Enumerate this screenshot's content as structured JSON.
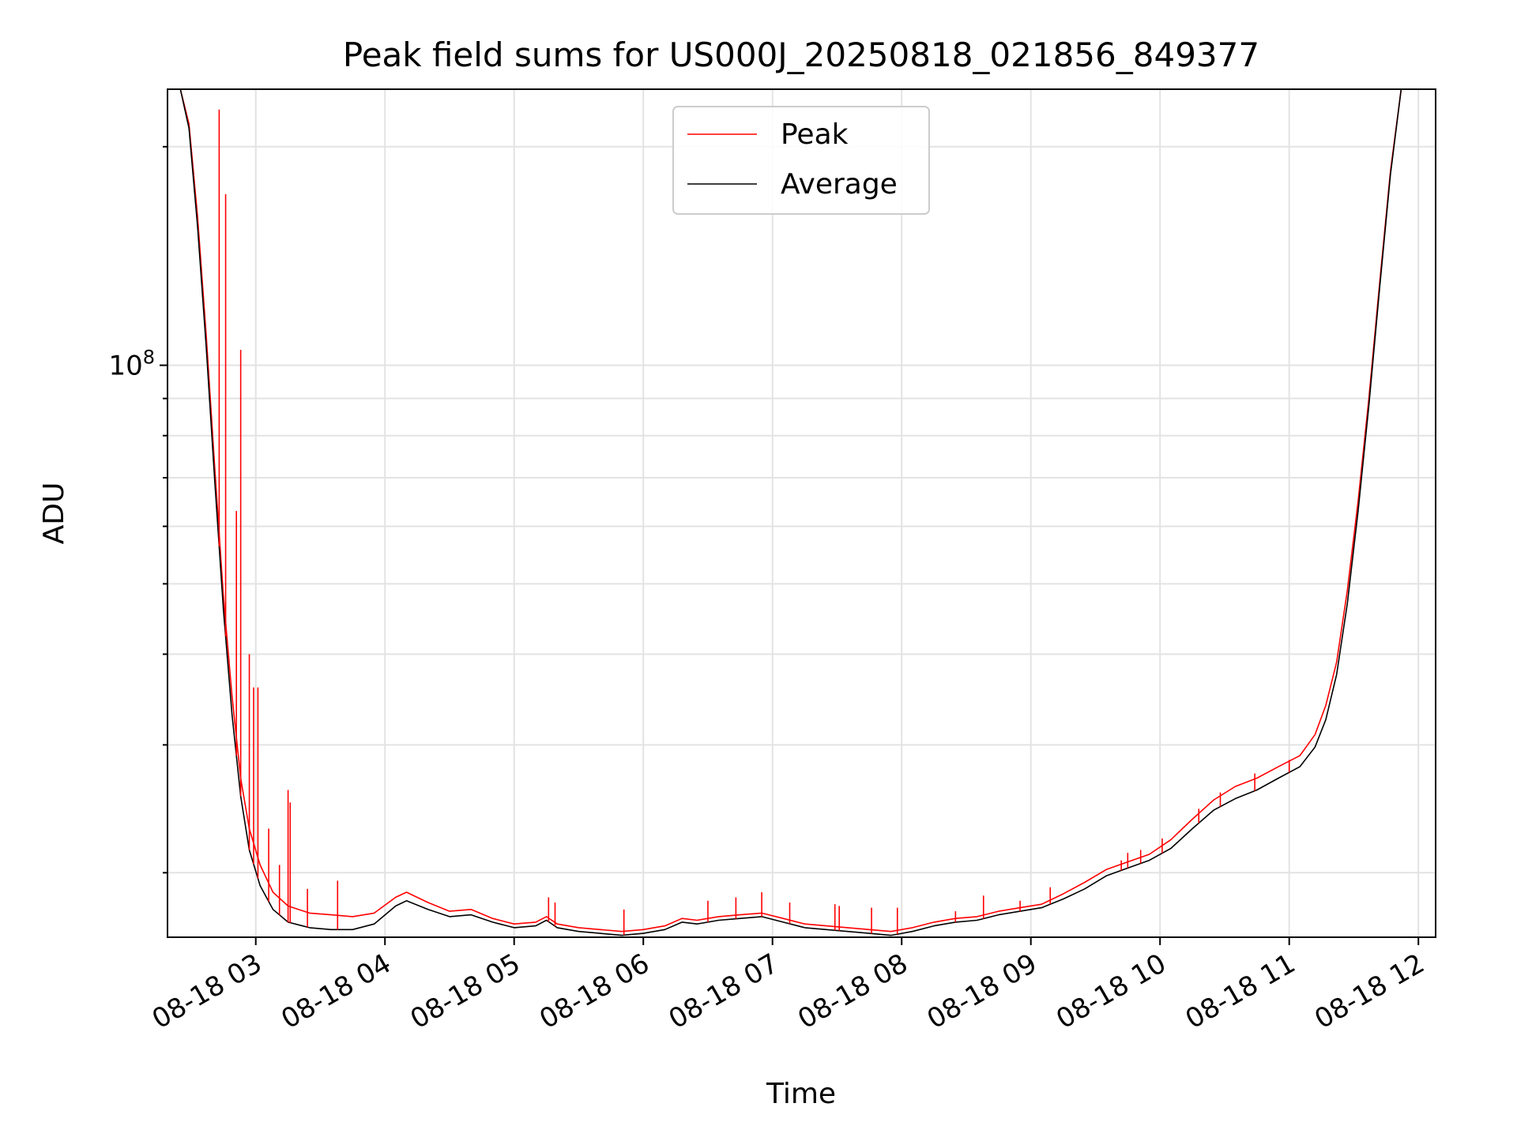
{
  "chart_data": {
    "type": "line",
    "title": "Peak field sums for US000J_20250818_021856_849377",
    "xlabel": "Time",
    "ylabel": "ADU",
    "y_scale": "log",
    "grid": true,
    "legend_placement": "top-center",
    "xlim": [
      "2025-08-18 02:19",
      "2025-08-18 12:08"
    ],
    "ylim": [
      16300000,
      240000000
    ],
    "x_ticks": [
      {
        "label": "08-18 03",
        "value": "2025-08-18 03:00"
      },
      {
        "label": "08-18 04",
        "value": "2025-08-18 04:00"
      },
      {
        "label": "08-18 05",
        "value": "2025-08-18 05:00"
      },
      {
        "label": "08-18 06",
        "value": "2025-08-18 06:00"
      },
      {
        "label": "08-18 07",
        "value": "2025-08-18 07:00"
      },
      {
        "label": "08-18 08",
        "value": "2025-08-18 08:00"
      },
      {
        "label": "08-18 09",
        "value": "2025-08-18 09:00"
      },
      {
        "label": "08-18 10",
        "value": "2025-08-18 10:00"
      },
      {
        "label": "08-18 11",
        "value": "2025-08-18 11:00"
      },
      {
        "label": "08-18 12",
        "value": "2025-08-18 12:00"
      }
    ],
    "y_major_ticks": [
      {
        "base": "10",
        "exp": "8",
        "value": 100000000
      }
    ],
    "y_minor_ticks": [
      20000000,
      30000000,
      40000000,
      50000000,
      60000000,
      70000000,
      80000000,
      90000000,
      200000000
    ],
    "series": [
      {
        "name": "Peak",
        "color": "#ff0000",
        "line_width": "thin",
        "points": [
          [
            "2025-08-18 02:19",
            240000000
          ],
          [
            "2025-08-18 02:25",
            240000000
          ],
          [
            "2025-08-18 02:29",
            215000000
          ],
          [
            "2025-08-18 02:33",
            160000000
          ],
          [
            "2025-08-18 02:37",
            110000000
          ],
          [
            "2025-08-18 02:41",
            72000000
          ],
          [
            "2025-08-18 02:45",
            48000000
          ],
          [
            "2025-08-18 02:49",
            35000000
          ],
          [
            "2025-08-18 02:53",
            27000000
          ],
          [
            "2025-08-18 02:57",
            23000000
          ],
          [
            "2025-08-18 03:02",
            20500000
          ],
          [
            "2025-08-18 03:08",
            18800000
          ],
          [
            "2025-08-18 03:15",
            18000000
          ],
          [
            "2025-08-18 03:25",
            17600000
          ],
          [
            "2025-08-18 03:35",
            17500000
          ],
          [
            "2025-08-18 03:45",
            17400000
          ],
          [
            "2025-08-18 03:55",
            17600000
          ],
          [
            "2025-08-18 04:05",
            18500000
          ],
          [
            "2025-08-18 04:10",
            18800000
          ],
          [
            "2025-08-18 04:20",
            18200000
          ],
          [
            "2025-08-18 04:30",
            17700000
          ],
          [
            "2025-08-18 04:40",
            17800000
          ],
          [
            "2025-08-18 04:50",
            17300000
          ],
          [
            "2025-08-18 05:00",
            17000000
          ],
          [
            "2025-08-18 05:10",
            17100000
          ],
          [
            "2025-08-18 05:15",
            17400000
          ],
          [
            "2025-08-18 05:20",
            17000000
          ],
          [
            "2025-08-18 05:30",
            16800000
          ],
          [
            "2025-08-18 05:40",
            16700000
          ],
          [
            "2025-08-18 05:50",
            16600000
          ],
          [
            "2025-08-18 06:00",
            16700000
          ],
          [
            "2025-08-18 06:10",
            16900000
          ],
          [
            "2025-08-18 06:18",
            17300000
          ],
          [
            "2025-08-18 06:25",
            17200000
          ],
          [
            "2025-08-18 06:35",
            17400000
          ],
          [
            "2025-08-18 06:45",
            17500000
          ],
          [
            "2025-08-18 06:55",
            17600000
          ],
          [
            "2025-08-18 07:05",
            17300000
          ],
          [
            "2025-08-18 07:15",
            17000000
          ],
          [
            "2025-08-18 07:25",
            16900000
          ],
          [
            "2025-08-18 07:35",
            16800000
          ],
          [
            "2025-08-18 07:45",
            16700000
          ],
          [
            "2025-08-18 07:55",
            16600000
          ],
          [
            "2025-08-18 08:05",
            16800000
          ],
          [
            "2025-08-18 08:15",
            17100000
          ],
          [
            "2025-08-18 08:25",
            17300000
          ],
          [
            "2025-08-18 08:35",
            17400000
          ],
          [
            "2025-08-18 08:45",
            17700000
          ],
          [
            "2025-08-18 08:55",
            17900000
          ],
          [
            "2025-08-18 09:05",
            18100000
          ],
          [
            "2025-08-18 09:15",
            18700000
          ],
          [
            "2025-08-18 09:25",
            19400000
          ],
          [
            "2025-08-18 09:35",
            20200000
          ],
          [
            "2025-08-18 09:45",
            20700000
          ],
          [
            "2025-08-18 09:55",
            21200000
          ],
          [
            "2025-08-18 10:05",
            22200000
          ],
          [
            "2025-08-18 10:15",
            23700000
          ],
          [
            "2025-08-18 10:25",
            25200000
          ],
          [
            "2025-08-18 10:35",
            26300000
          ],
          [
            "2025-08-18 10:45",
            27000000
          ],
          [
            "2025-08-18 10:55",
            28000000
          ],
          [
            "2025-08-18 11:05",
            29000000
          ],
          [
            "2025-08-18 11:12",
            31000000
          ],
          [
            "2025-08-18 11:17",
            34000000
          ],
          [
            "2025-08-18 11:22",
            39000000
          ],
          [
            "2025-08-18 11:27",
            49000000
          ],
          [
            "2025-08-18 11:32",
            65000000
          ],
          [
            "2025-08-18 11:37",
            90000000
          ],
          [
            "2025-08-18 11:42",
            130000000
          ],
          [
            "2025-08-18 11:47",
            185000000
          ],
          [
            "2025-08-18 11:52",
            240000000
          ],
          [
            "2025-08-18 12:08",
            240000000
          ]
        ],
        "spikes": [
          [
            "2025-08-18 02:43",
            225000000
          ],
          [
            "2025-08-18 02:46",
            172000000
          ],
          [
            "2025-08-18 02:51",
            63000000
          ],
          [
            "2025-08-18 02:53",
            105000000
          ],
          [
            "2025-08-18 02:57",
            40000000
          ],
          [
            "2025-08-18 02:59",
            36000000
          ],
          [
            "2025-08-18 03:01",
            36000000
          ],
          [
            "2025-08-18 03:06",
            23000000
          ],
          [
            "2025-08-18 03:11",
            20500000
          ],
          [
            "2025-08-18 03:15",
            26000000
          ],
          [
            "2025-08-18 03:16",
            25000000
          ],
          [
            "2025-08-18 03:24",
            19000000
          ],
          [
            "2025-08-18 03:38",
            19500000
          ],
          [
            "2025-08-18 05:16",
            18500000
          ],
          [
            "2025-08-18 05:19",
            18200000
          ],
          [
            "2025-08-18 05:51",
            17800000
          ],
          [
            "2025-08-18 06:30",
            18300000
          ],
          [
            "2025-08-18 06:43",
            18500000
          ],
          [
            "2025-08-18 06:55",
            18800000
          ],
          [
            "2025-08-18 07:08",
            18200000
          ],
          [
            "2025-08-18 07:29",
            18100000
          ],
          [
            "2025-08-18 07:31",
            18000000
          ],
          [
            "2025-08-18 07:46",
            17900000
          ],
          [
            "2025-08-18 07:58",
            17900000
          ],
          [
            "2025-08-18 08:25",
            17700000
          ],
          [
            "2025-08-18 08:38",
            18600000
          ],
          [
            "2025-08-18 08:55",
            18300000
          ],
          [
            "2025-08-18 09:09",
            19100000
          ],
          [
            "2025-08-18 09:42",
            20800000
          ],
          [
            "2025-08-18 09:45",
            21300000
          ],
          [
            "2025-08-18 09:51",
            21500000
          ],
          [
            "2025-08-18 10:01",
            22300000
          ],
          [
            "2025-08-18 10:18",
            24500000
          ],
          [
            "2025-08-18 10:28",
            25800000
          ],
          [
            "2025-08-18 10:44",
            27400000
          ],
          [
            "2025-08-18 11:00",
            28600000
          ]
        ]
      },
      {
        "name": "Average",
        "color": "#000000",
        "line_width": "thin",
        "points": [
          [
            "2025-08-18 02:19",
            240000000
          ],
          [
            "2025-08-18 02:25",
            240000000
          ],
          [
            "2025-08-18 02:29",
            212000000
          ],
          [
            "2025-08-18 02:33",
            155000000
          ],
          [
            "2025-08-18 02:37",
            106000000
          ],
          [
            "2025-08-18 02:41",
            69000000
          ],
          [
            "2025-08-18 02:45",
            46000000
          ],
          [
            "2025-08-18 02:49",
            33000000
          ],
          [
            "2025-08-18 02:53",
            25500000
          ],
          [
            "2025-08-18 02:57",
            21500000
          ],
          [
            "2025-08-18 03:02",
            19200000
          ],
          [
            "2025-08-18 03:08",
            17800000
          ],
          [
            "2025-08-18 03:15",
            17100000
          ],
          [
            "2025-08-18 03:25",
            16800000
          ],
          [
            "2025-08-18 03:35",
            16700000
          ],
          [
            "2025-08-18 03:45",
            16700000
          ],
          [
            "2025-08-18 03:55",
            17000000
          ],
          [
            "2025-08-18 04:05",
            18000000
          ],
          [
            "2025-08-18 04:10",
            18300000
          ],
          [
            "2025-08-18 04:20",
            17800000
          ],
          [
            "2025-08-18 04:30",
            17400000
          ],
          [
            "2025-08-18 04:40",
            17500000
          ],
          [
            "2025-08-18 04:50",
            17100000
          ],
          [
            "2025-08-18 05:00",
            16800000
          ],
          [
            "2025-08-18 05:10",
            16900000
          ],
          [
            "2025-08-18 05:15",
            17200000
          ],
          [
            "2025-08-18 05:20",
            16800000
          ],
          [
            "2025-08-18 05:30",
            16600000
          ],
          [
            "2025-08-18 05:40",
            16500000
          ],
          [
            "2025-08-18 05:50",
            16400000
          ],
          [
            "2025-08-18 06:00",
            16500000
          ],
          [
            "2025-08-18 06:10",
            16700000
          ],
          [
            "2025-08-18 06:18",
            17100000
          ],
          [
            "2025-08-18 06:25",
            17000000
          ],
          [
            "2025-08-18 06:35",
            17200000
          ],
          [
            "2025-08-18 06:45",
            17300000
          ],
          [
            "2025-08-18 06:55",
            17400000
          ],
          [
            "2025-08-18 07:05",
            17100000
          ],
          [
            "2025-08-18 07:15",
            16800000
          ],
          [
            "2025-08-18 07:25",
            16700000
          ],
          [
            "2025-08-18 07:35",
            16600000
          ],
          [
            "2025-08-18 07:45",
            16500000
          ],
          [
            "2025-08-18 07:55",
            16400000
          ],
          [
            "2025-08-18 08:05",
            16600000
          ],
          [
            "2025-08-18 08:15",
            16900000
          ],
          [
            "2025-08-18 08:25",
            17100000
          ],
          [
            "2025-08-18 08:35",
            17200000
          ],
          [
            "2025-08-18 08:45",
            17500000
          ],
          [
            "2025-08-18 08:55",
            17700000
          ],
          [
            "2025-08-18 09:05",
            17900000
          ],
          [
            "2025-08-18 09:15",
            18400000
          ],
          [
            "2025-08-18 09:25",
            19000000
          ],
          [
            "2025-08-18 09:35",
            19800000
          ],
          [
            "2025-08-18 09:45",
            20300000
          ],
          [
            "2025-08-18 09:55",
            20800000
          ],
          [
            "2025-08-18 10:05",
            21600000
          ],
          [
            "2025-08-18 10:15",
            23000000
          ],
          [
            "2025-08-18 10:25",
            24400000
          ],
          [
            "2025-08-18 10:35",
            25300000
          ],
          [
            "2025-08-18 10:45",
            26000000
          ],
          [
            "2025-08-18 10:55",
            27000000
          ],
          [
            "2025-08-18 11:05",
            28000000
          ],
          [
            "2025-08-18 11:12",
            29800000
          ],
          [
            "2025-08-18 11:17",
            32500000
          ],
          [
            "2025-08-18 11:22",
            37500000
          ],
          [
            "2025-08-18 11:27",
            47000000
          ],
          [
            "2025-08-18 11:32",
            63000000
          ],
          [
            "2025-08-18 11:37",
            88000000
          ],
          [
            "2025-08-18 11:42",
            128000000
          ],
          [
            "2025-08-18 11:47",
            183000000
          ],
          [
            "2025-08-18 11:52",
            240000000
          ],
          [
            "2025-08-18 12:08",
            240000000
          ]
        ]
      }
    ]
  }
}
